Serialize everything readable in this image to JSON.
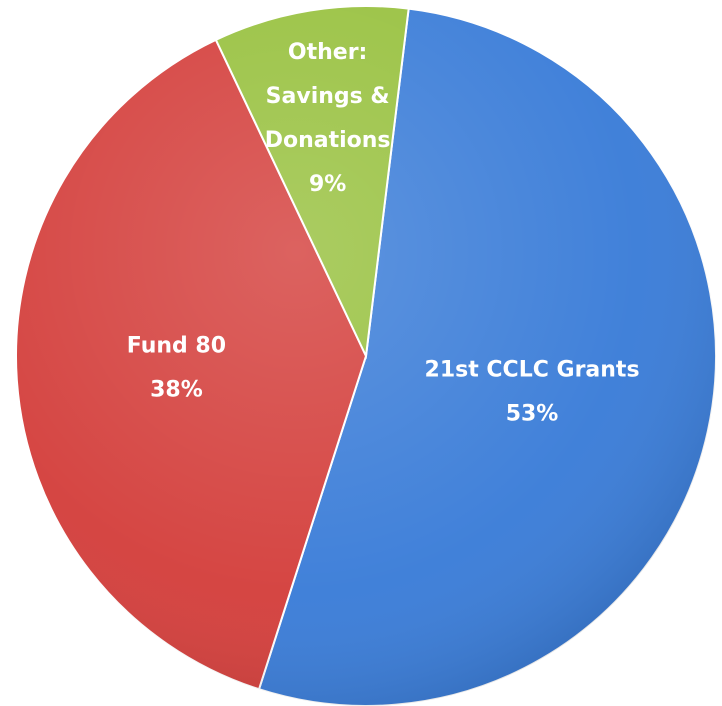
{
  "chart_data": {
    "type": "pie",
    "categories": [
      "21st CCLC Grants",
      "Fund 80",
      "Other: Savings & Donations"
    ],
    "values": [
      53,
      38,
      9
    ],
    "value_labels": [
      "53%",
      "38%",
      "9%"
    ],
    "colors": [
      "#3b7dd8",
      "#d4403d",
      "#98c13f"
    ]
  }
}
